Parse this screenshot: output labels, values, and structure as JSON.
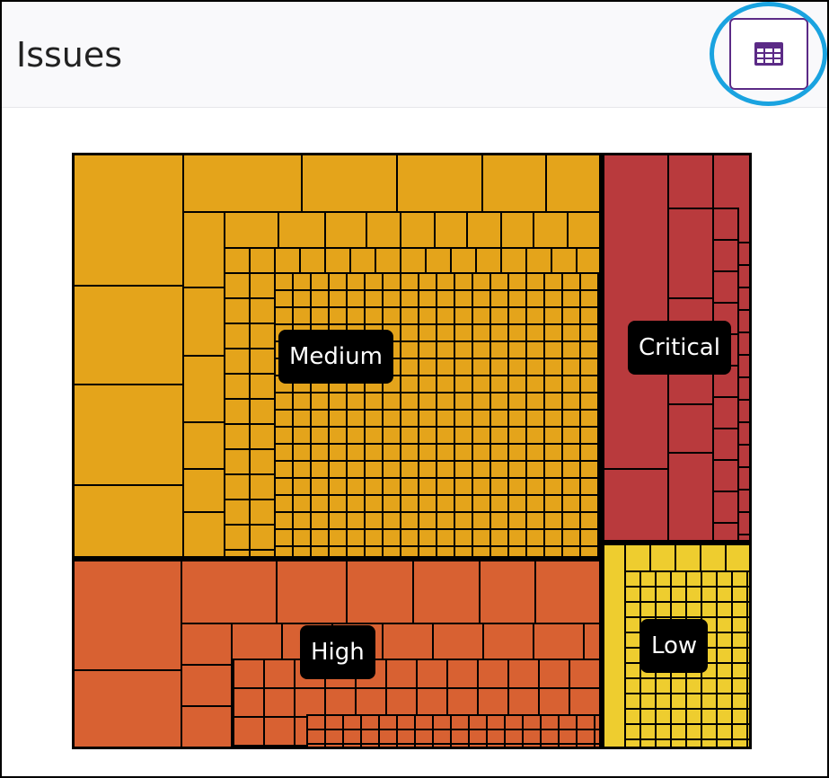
{
  "header": {
    "title": "Issues",
    "table_view_icon": "table-icon"
  },
  "colors": {
    "Critical": "#b93a3d",
    "High": "#d86132",
    "Medium": "#e4a41b",
    "Low": "#eecd2f",
    "accent": "#5b2a86",
    "highlight": "#1aa3e0"
  },
  "chart_data": {
    "type": "treemap",
    "categories": [
      "Medium",
      "Critical",
      "High",
      "Low"
    ],
    "labels": {
      "Medium": "Medium",
      "Critical": "Critical",
      "High": "High",
      "Low": "Low"
    }
  }
}
